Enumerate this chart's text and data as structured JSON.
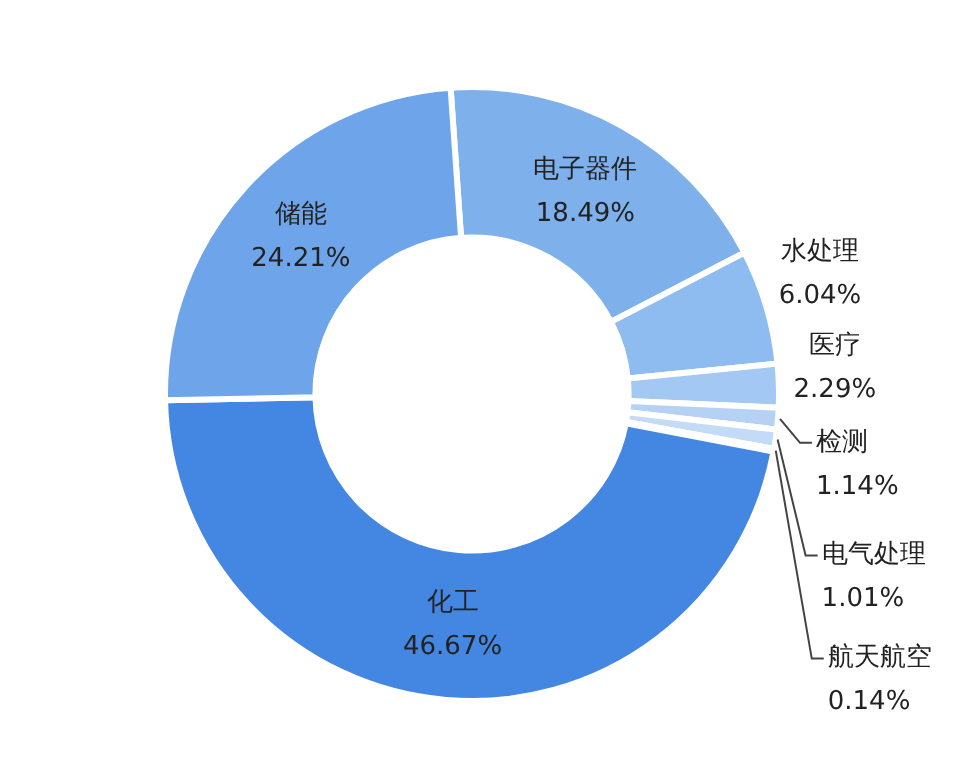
{
  "chart_data": {
    "type": "donut",
    "categories": [
      "电子器件",
      "水处理",
      "医疗",
      "检测",
      "电气处理",
      "航天航空",
      "化工",
      "储能"
    ],
    "values": [
      18.49,
      6.04,
      2.29,
      1.14,
      1.01,
      0.14,
      46.67,
      24.21
    ],
    "value_labels": [
      "18.49%",
      "6.04%",
      "2.29%",
      "1.14%",
      "1.01%",
      "0.14%",
      "46.67%",
      "24.21%"
    ],
    "colors": [
      "#7eb0ec",
      "#8ebbf0",
      "#a3c8f3",
      "#b5d2f5",
      "#c3dbf6",
      "#d3e4f8",
      "#4487e2",
      "#6ea5ea"
    ],
    "legend": false
  }
}
